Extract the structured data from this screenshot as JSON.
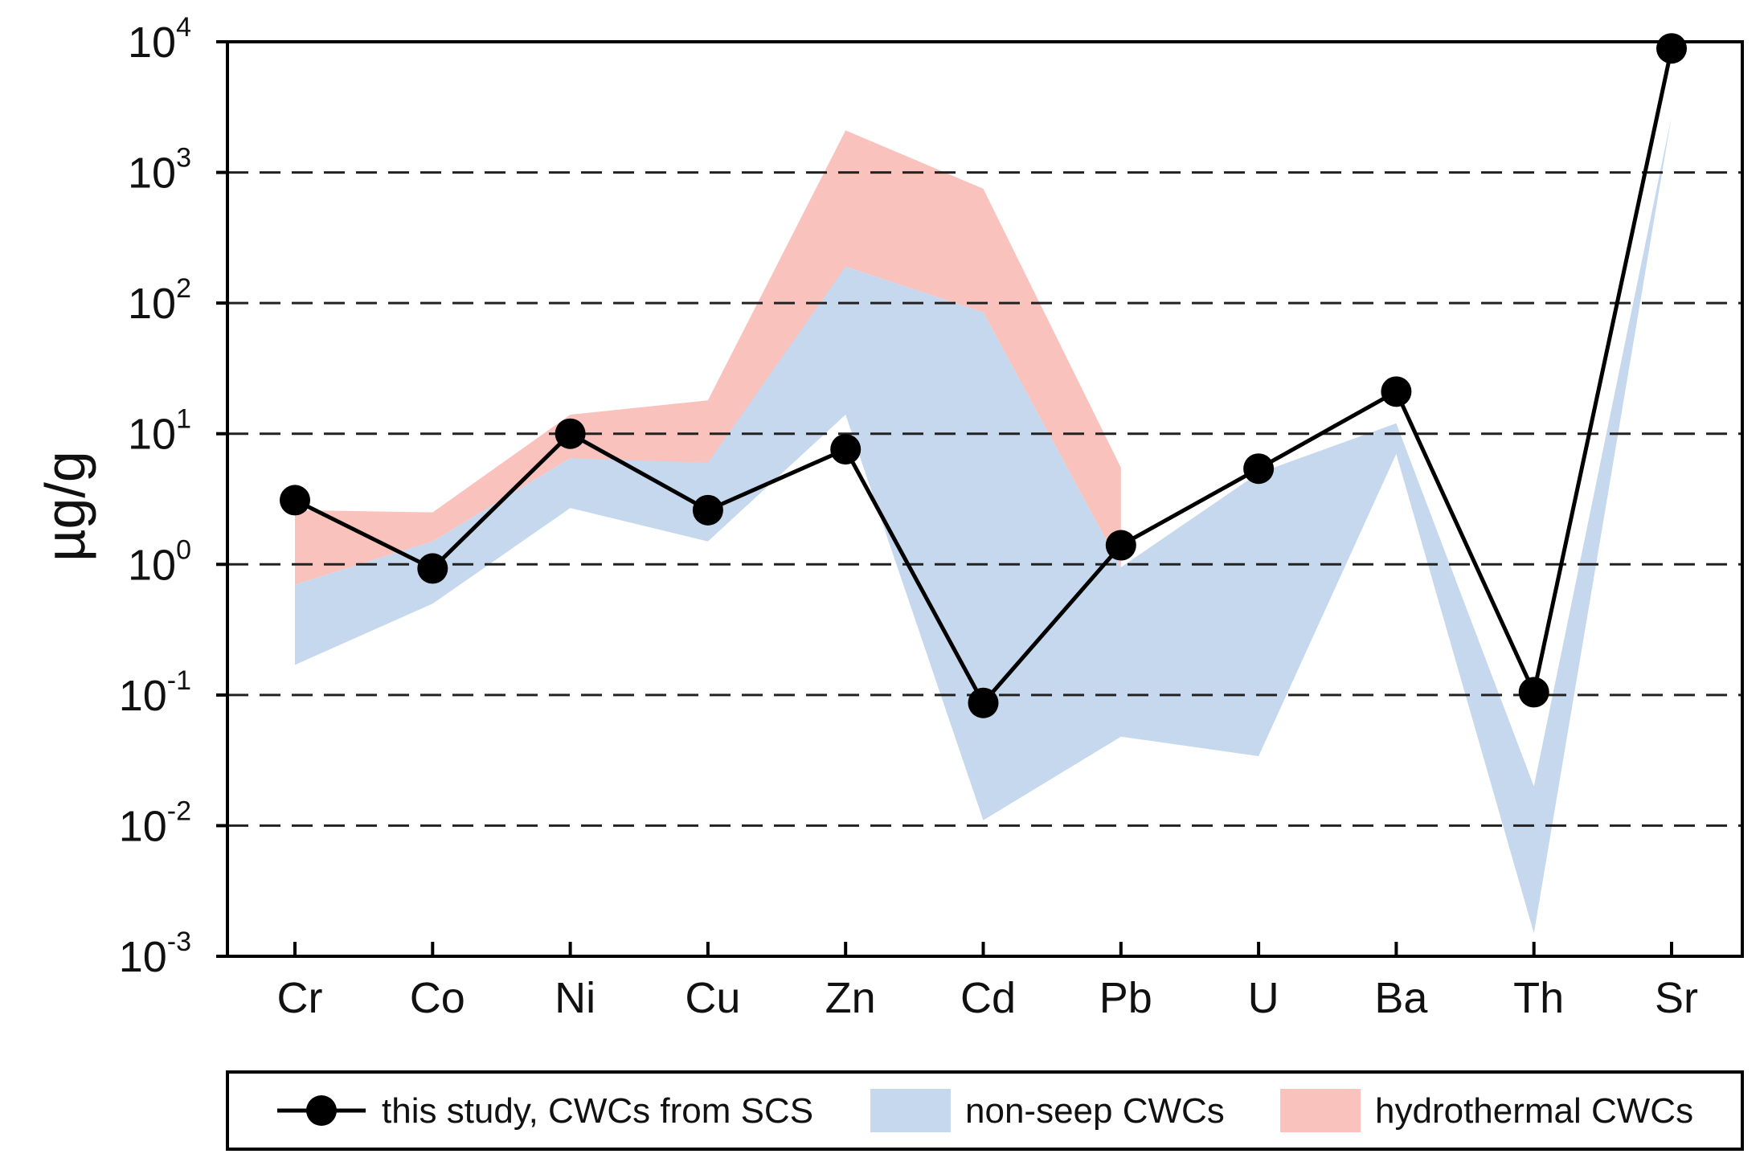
{
  "chart_data": {
    "type": "line",
    "title": "",
    "xlabel": "",
    "ylabel": "µg/g",
    "yscale": "log",
    "ylim": [
      0.001,
      10000
    ],
    "categories": [
      "Cr",
      "Co",
      "Ni",
      "Cu",
      "Zn",
      "Cd",
      "Pb",
      "U",
      "Ba",
      "Th",
      "Sr"
    ],
    "y_ticks": [
      {
        "value": 10000,
        "base": "10",
        "exp": "4"
      },
      {
        "value": 1000,
        "base": "10",
        "exp": "3"
      },
      {
        "value": 100,
        "base": "10",
        "exp": "2"
      },
      {
        "value": 10,
        "base": "10",
        "exp": "1"
      },
      {
        "value": 1,
        "base": "10",
        "exp": "0"
      },
      {
        "value": 0.1,
        "base": "10",
        "exp": "-1"
      },
      {
        "value": 0.01,
        "base": "10",
        "exp": "-2"
      },
      {
        "value": 0.001,
        "base": "10",
        "exp": "-3"
      }
    ],
    "grid": "dashed horizontal at decades",
    "series": [
      {
        "name": "this study, CWCs from SCS",
        "kind": "line-marker",
        "color": "#000000",
        "values": [
          3.1,
          0.93,
          10,
          2.6,
          7.6,
          0.087,
          1.4,
          5.4,
          21,
          0.105,
          8900
        ]
      }
    ],
    "bands": [
      {
        "name": "hydrothermal CWCs",
        "color": "#f9c2bc",
        "upper": [
          2.6,
          2.5,
          14,
          18,
          2100,
          750,
          5.5,
          null,
          null,
          null,
          null
        ],
        "lower": [
          0.7,
          1.5,
          6.5,
          4.5,
          190,
          85,
          0.95,
          null,
          null,
          null,
          null
        ]
      },
      {
        "name": "non-seep CWCs",
        "color": "#c6d8ee",
        "upper": [
          0.7,
          1.5,
          6.5,
          6,
          190,
          85,
          0.95,
          5,
          12,
          0.02,
          2700
        ],
        "lower": [
          0.17,
          0.5,
          2.7,
          1.5,
          14,
          0.011,
          0.048,
          0.034,
          7,
          0.0015,
          2700
        ]
      }
    ],
    "legend": {
      "position": "bottom",
      "items": [
        {
          "label": "this study, CWCs from SCS",
          "kind": "line-marker",
          "color": "#000000"
        },
        {
          "label": "non-seep CWCs",
          "kind": "patch",
          "color": "#c6d8ee"
        },
        {
          "label": "hydrothermal CWCs",
          "kind": "patch",
          "color": "#f9c2bc"
        }
      ]
    }
  }
}
